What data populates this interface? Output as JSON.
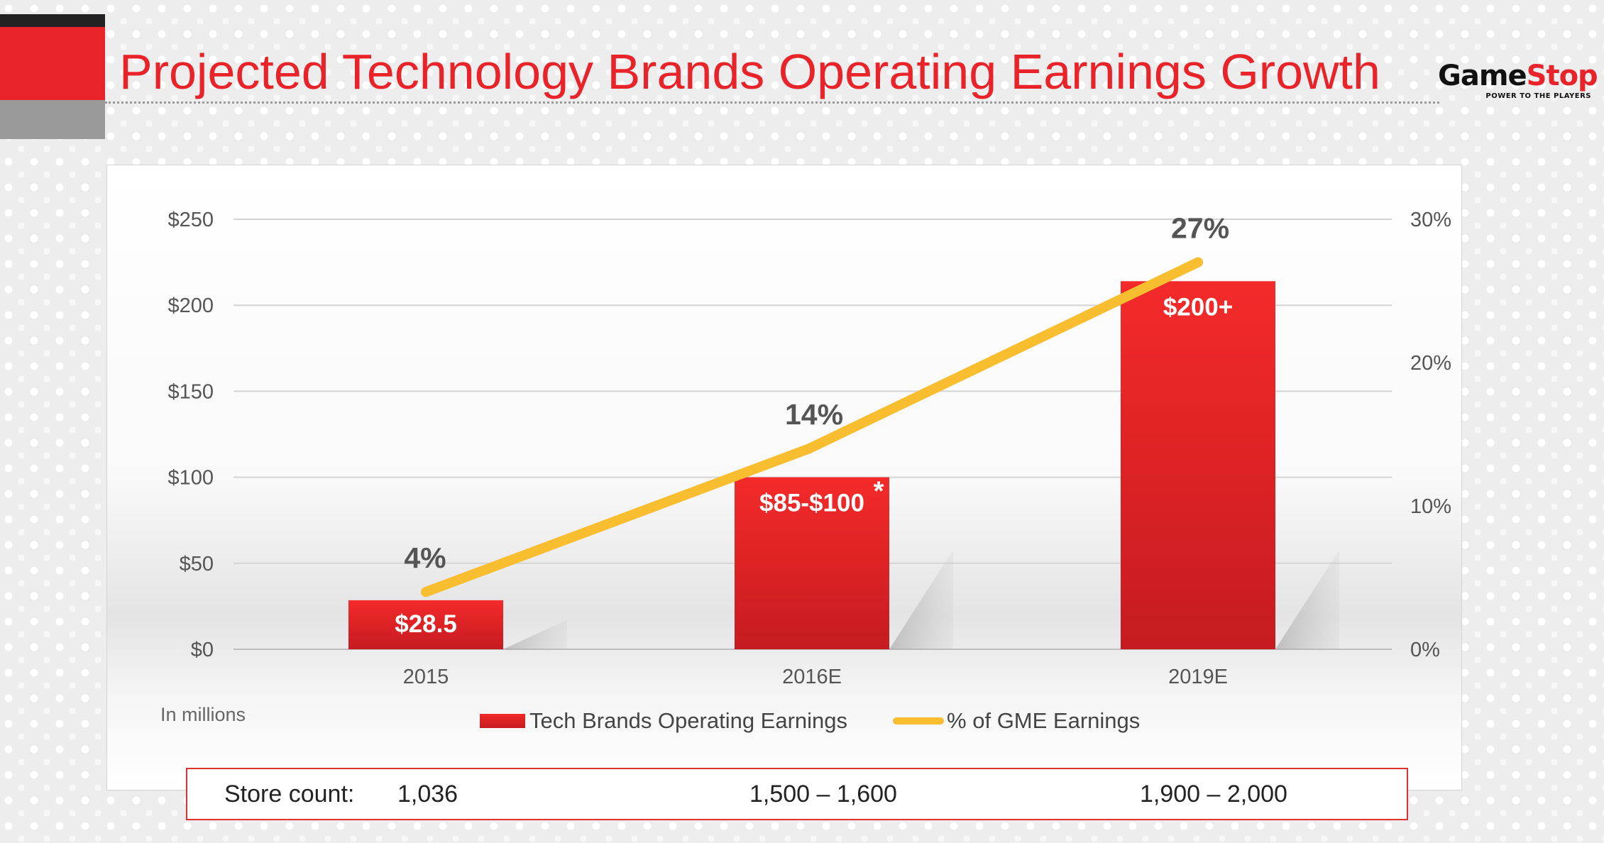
{
  "header": {
    "title": "Projected Technology Brands Operating Earnings Growth",
    "logo_text_game": "Game",
    "logo_text_stop": "Stop",
    "logo_tagline": "POWER TO THE PLAYERS"
  },
  "chart_data": {
    "type": "bar",
    "categories": [
      "2015",
      "2016E",
      "2019E"
    ],
    "series": [
      {
        "name": "Tech Brands Operating Earnings",
        "type": "bar",
        "axis": "left",
        "values": [
          28.5,
          100,
          214
        ],
        "labels": [
          "$28.5",
          "$85-$100",
          "$200+"
        ],
        "color": "#e8242a"
      },
      {
        "name": "% of GME Earnings",
        "type": "line",
        "axis": "right",
        "values": [
          4,
          14,
          27
        ],
        "labels": [
          "4%",
          "14%",
          "27%"
        ],
        "color": "#f9bd30"
      }
    ],
    "footnote_marker": "*",
    "left_axis": {
      "ticks": [
        "$0",
        "$50",
        "$100",
        "$150",
        "$200",
        "$250"
      ],
      "ylim": [
        0,
        250
      ]
    },
    "right_axis": {
      "ticks": [
        "0%",
        "10%",
        "20%",
        "30%"
      ],
      "ylim": [
        0,
        30
      ]
    },
    "units_note": "In millions",
    "grid": true,
    "legend_position": "bottom"
  },
  "store_count": {
    "label": "Store count:",
    "values": [
      "1,036",
      "1,500 – 1,600",
      "1,900 – 2,000"
    ]
  }
}
